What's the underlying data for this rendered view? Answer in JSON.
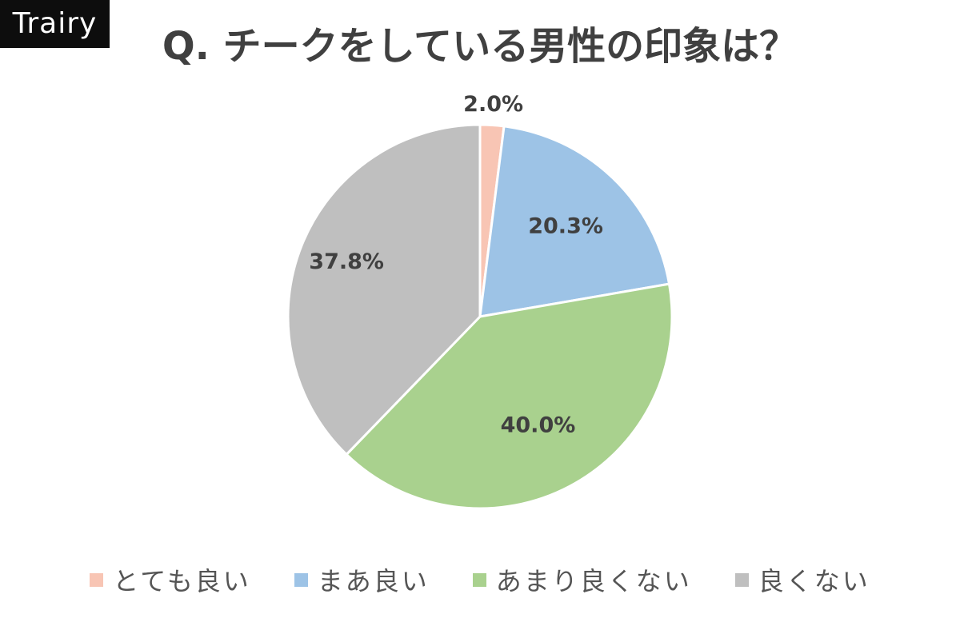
{
  "brand": "Trairy",
  "chart_data": {
    "type": "pie",
    "title": "Q. チークをしている男性の印象は？",
    "categories": [
      "とても良い",
      "まあ良い",
      "あまり良くない",
      "良くない"
    ],
    "values": [
      2.0,
      20.3,
      40.0,
      37.8
    ],
    "labels": [
      "2.0%",
      "20.3%",
      "40.0%",
      "37.8%"
    ],
    "unit": "%",
    "colors": [
      "#f8c5b4",
      "#9dc3e6",
      "#a9d18e",
      "#bfbfbf"
    ],
    "legend_position": "bottom",
    "start_angle": "top, clockwise"
  }
}
